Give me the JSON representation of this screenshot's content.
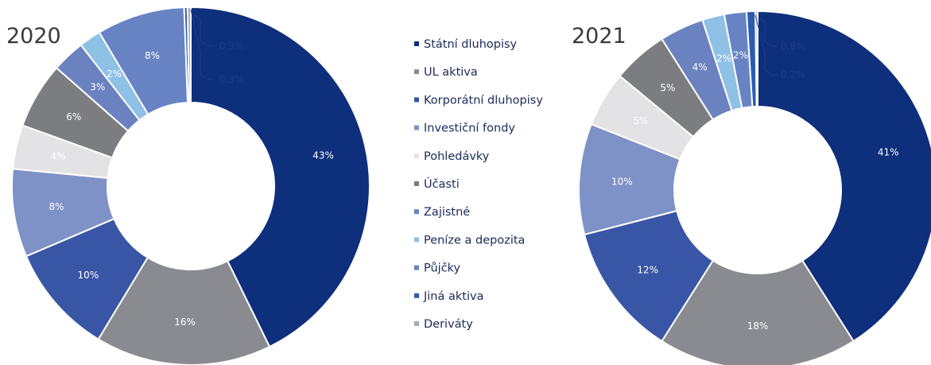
{
  "chart_data": [
    {
      "type": "pie",
      "title": "2020",
      "categories": [
        "Státní dluhopisy",
        "UL aktiva",
        "Korporátní dluhopisy",
        "Investiční fondy",
        "Pohledávky",
        "Účasti",
        "Zajistné",
        "Peníze a depozita",
        "Půjčky",
        "Jiná aktiva",
        "Deriváty"
      ],
      "values": [
        43,
        16,
        10,
        8,
        4,
        6,
        3,
        2,
        8,
        0.3,
        0.3
      ],
      "data_labels": [
        "43%",
        "16%",
        "10%",
        "8%",
        "4%",
        "6%",
        "3%",
        "2%",
        "8%",
        "0,3%",
        "0,3%"
      ]
    },
    {
      "type": "pie",
      "title": "2021",
      "categories": [
        "Státní dluhopisy",
        "UL aktiva",
        "Korporátní dluhopisy",
        "Investiční fondy",
        "Pohledávky",
        "Účasti",
        "Zajistné",
        "Peníze a depozita",
        "Půjčky",
        "Jiná aktiva",
        "Deriváty"
      ],
      "values": [
        41,
        18,
        12,
        10,
        5,
        5,
        4,
        2,
        2,
        0.8,
        0.2
      ],
      "data_labels": [
        "41%",
        "18%",
        "12%",
        "10%",
        "5%",
        "5%",
        "4%",
        "2%",
        "2%",
        "0,8%",
        "0,2%"
      ]
    }
  ],
  "legend": {
    "placement": "center",
    "items": [
      "Státní dluhopisy",
      "UL aktiva",
      "Korporátní dluhopisy",
      "Investiční fondy",
      "Pohledávky",
      "Účasti",
      "Zajistné",
      "Peníze a depozita",
      "Půjčky",
      "Jiná aktiva",
      "Deriváty"
    ]
  },
  "colors": [
    "#0e2f7c",
    "#8a8b91",
    "#3856a5",
    "#7e92c8",
    "#e3e3e5",
    "#7c7d81",
    "#6a82bf",
    "#8fc0e6",
    "#6783c4",
    "#2b5cb0",
    "#a9aab0"
  ]
}
